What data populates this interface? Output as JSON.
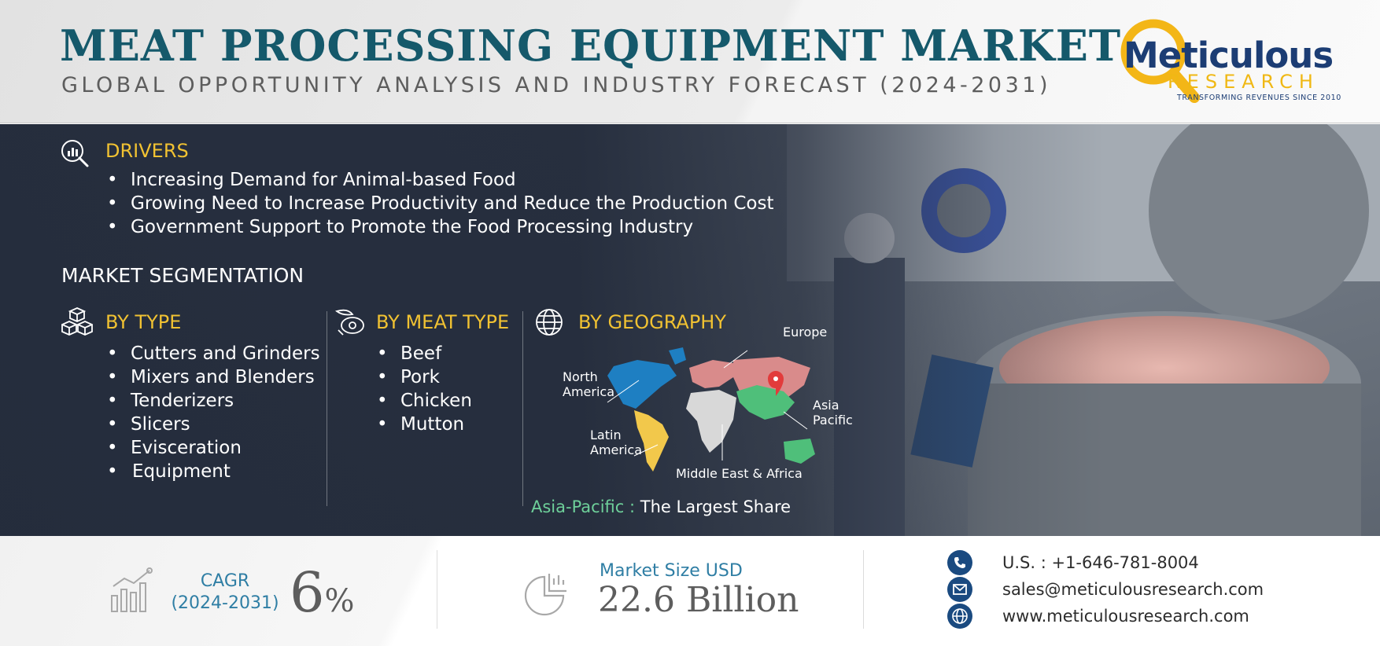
{
  "header": {
    "title": "MEAT PROCESSING EQUIPMENT MARKET",
    "subtitle": "GLOBAL OPPORTUNITY ANALYSIS AND INDUSTRY FORECAST (2024-2031)"
  },
  "logo": {
    "name": "Meticulous",
    "sub": "RESEARCH",
    "tagline": "TRANSFORMING REVENUES SINCE 2010"
  },
  "drivers": {
    "heading": "DRIVERS",
    "items": [
      "Increasing Demand for Animal-based Food",
      "Growing Need to Increase Productivity and Reduce the Production Cost",
      "Government Support to Promote the Food Processing Industry"
    ]
  },
  "segmentation": {
    "title": "MARKET SEGMENTATION",
    "by_type": {
      "heading": "BY TYPE",
      "items": [
        "Cutters and Grinders",
        "Mixers and Blenders",
        "Tenderizers",
        "Slicers",
        "Evisceration",
        "Equipment"
      ]
    },
    "by_meat_type": {
      "heading": "BY MEAT TYPE",
      "items": [
        "Beef",
        "Pork",
        "Chicken",
        "Mutton"
      ]
    },
    "by_geography": {
      "heading": "BY GEOGRAPHY",
      "regions": {
        "north_america": [
          "North",
          "America"
        ],
        "europe": "Europe",
        "asia_pacific": [
          "Asia",
          "Pacific"
        ],
        "latin_america": [
          "Latin",
          "America"
        ],
        "mea": "Middle East & Africa"
      },
      "share_highlight": "Asia-Pacific :",
      "share_text": "The Largest Share"
    }
  },
  "stats": {
    "cagr_label_line1": "CAGR",
    "cagr_label_line2": "(2024-2031)",
    "cagr_value": "6",
    "cagr_unit": "%",
    "market_size_label": "Market Size USD",
    "market_size_value": "22.6 Billion"
  },
  "contact": {
    "phone": "U.S. : +1-646-781-8004",
    "email": "sales@meticulousresearch.com",
    "website": "www.meticulousresearch.com"
  },
  "colors": {
    "title": "#15596b",
    "accent_yellow": "#f1c232",
    "panel_dark": "#2a3444",
    "stat_blue": "#2f7ea4",
    "contact_icon": "#1a4a80",
    "highlight_green": "#6ed09a"
  }
}
